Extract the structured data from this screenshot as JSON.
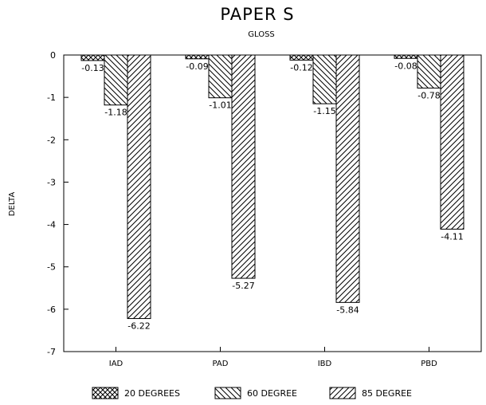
{
  "chart_data": {
    "type": "bar",
    "title": "PAPER S",
    "subtitle": "GLOSS",
    "ylabel": "DELTA",
    "xlabel": "",
    "ylim": [
      -7,
      0
    ],
    "yticks": [
      "0",
      "-1",
      "-2",
      "-3",
      "-4",
      "-5",
      "-6",
      "-7"
    ],
    "categories": [
      "IAD",
      "PAD",
      "IBD",
      "PBD"
    ],
    "series": [
      {
        "name": "20 DEGREES",
        "values": [
          -0.13,
          -0.09,
          -0.12,
          -0.08
        ],
        "labels": [
          "-0.13",
          "-0.09",
          "-0.12",
          "-0.08"
        ],
        "pattern": "crosshatch"
      },
      {
        "name": "60 DEGREE",
        "values": [
          -1.18,
          -1.01,
          -1.15,
          -0.78
        ],
        "labels": [
          "-1.18",
          "-1.01",
          "-1.15",
          "-0.78"
        ],
        "pattern": "backslash-hatch"
      },
      {
        "name": "85 DEGREE",
        "values": [
          -6.22,
          -5.27,
          -5.84,
          -4.11
        ],
        "labels": [
          "-6.22",
          "-5.27",
          "-5.84",
          "-4.11"
        ],
        "pattern": "slash-hatch"
      }
    ],
    "grid": false,
    "legend_position": "bottom"
  }
}
